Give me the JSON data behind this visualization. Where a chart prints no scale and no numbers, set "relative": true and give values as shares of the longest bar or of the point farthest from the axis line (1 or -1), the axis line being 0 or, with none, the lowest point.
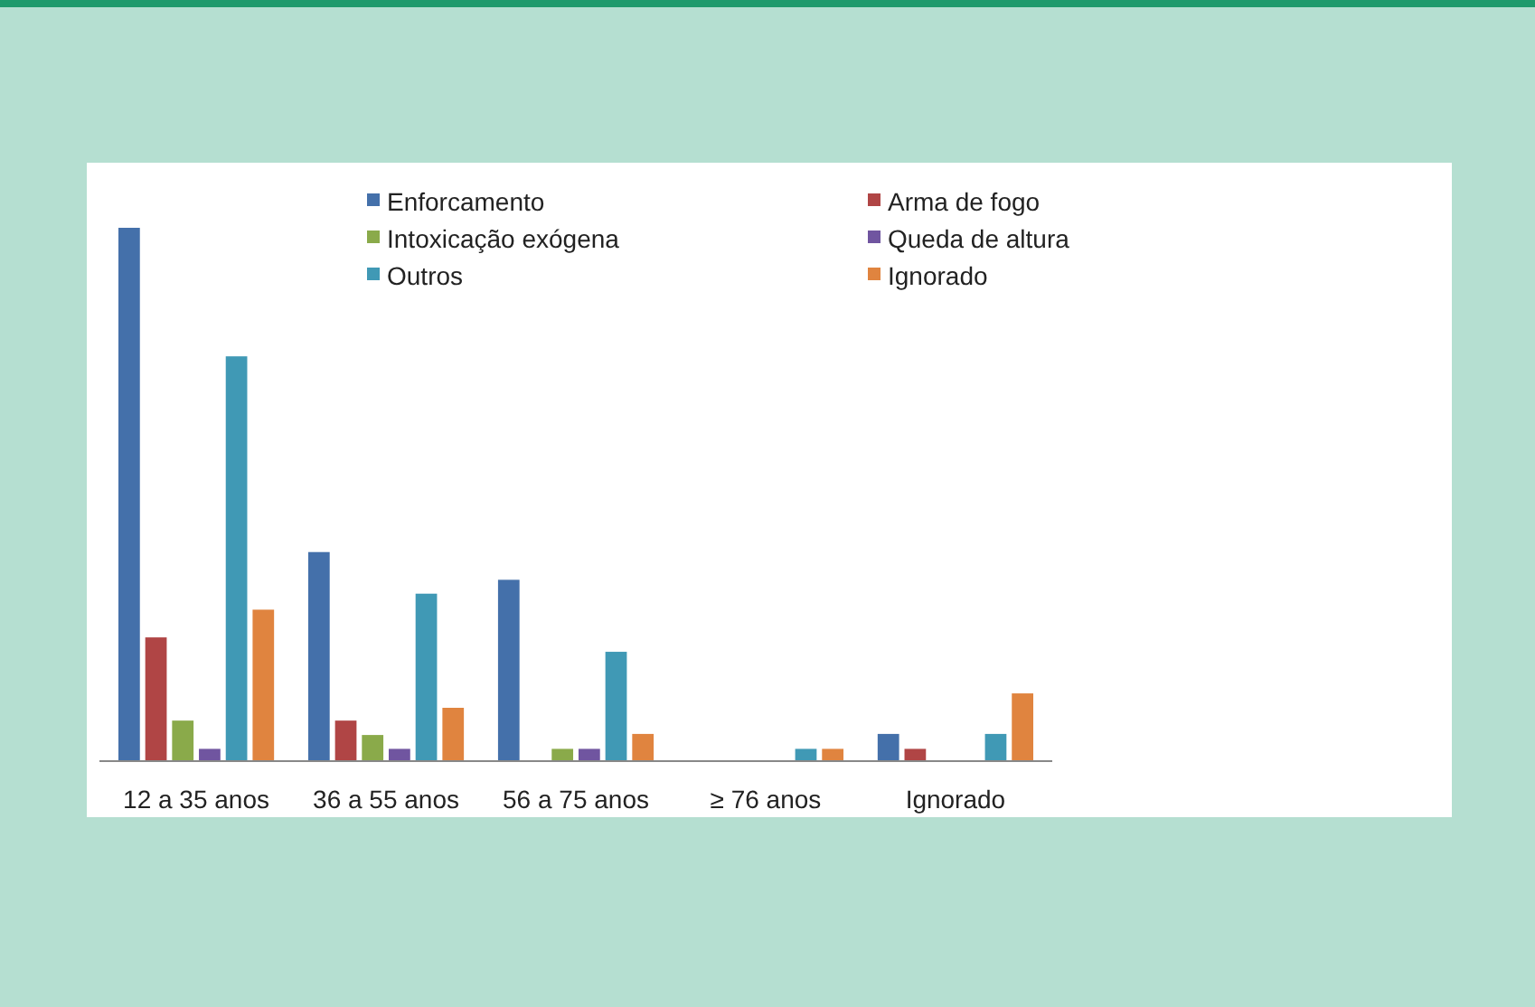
{
  "chart_data": {
    "type": "bar",
    "relative": true,
    "legend": "top",
    "categories": [
      "12 a 35 anos",
      "36 a 55 anos",
      "56 a 75 anos",
      "≥ 76 anos",
      "Ignorado"
    ],
    "series": [
      {
        "name": "Enforcamento",
        "color": "#4470aa",
        "values": [
          1,
          0.392,
          0.34,
          0,
          0.051
        ]
      },
      {
        "name": "Arma de fogo",
        "color": "#b04545",
        "values": [
          0.232,
          0.076,
          0,
          0,
          0.023
        ]
      },
      {
        "name": "Intoxicação exógena",
        "color": "#8aaa4a",
        "values": [
          0.076,
          0.049,
          0.023,
          0,
          0
        ]
      },
      {
        "name": "Queda de altura",
        "color": "#7055a0",
        "values": [
          0.023,
          0.023,
          0.023,
          0,
          0
        ]
      },
      {
        "name": "Outros",
        "color": "#4099b5",
        "values": [
          0.759,
          0.314,
          0.205,
          0.023,
          0.051
        ]
      },
      {
        "name": "Ignorado",
        "color": "#e0843f",
        "values": [
          0.284,
          0.1,
          0.051,
          0.023,
          0.127
        ]
      }
    ]
  }
}
